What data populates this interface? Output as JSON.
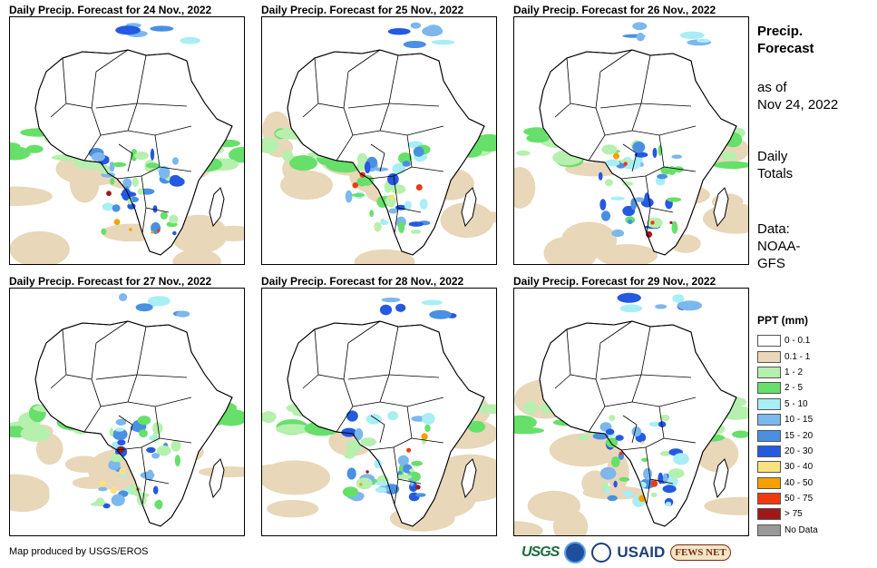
{
  "panels": [
    {
      "title": "Daily Precip. Forecast for 24 Nov., 2022"
    },
    {
      "title": "Daily Precip. Forecast for 25 Nov., 2022"
    },
    {
      "title": "Daily Precip. Forecast for 26 Nov., 2022"
    },
    {
      "title": "Daily Precip. Forecast for 27 Nov., 2022"
    },
    {
      "title": "Daily Precip. Forecast for 28 Nov., 2022"
    },
    {
      "title": "Daily Precip. Forecast for 29 Nov., 2022"
    }
  ],
  "sidebar": {
    "title_line1": "Precip.",
    "title_line2": "Forecast",
    "asof_line1": "as of",
    "asof_line2": "Nov 24, 2022",
    "totals_line1": "Daily",
    "totals_line2": "Totals",
    "data_line1": "Data:",
    "data_line2": "NOAA-",
    "data_line3": "GFS"
  },
  "legend": {
    "title": "PPT (mm)",
    "items": [
      {
        "label": "0 - 0.1",
        "color": "#ffffff"
      },
      {
        "label": "0.1 - 1",
        "color": "#e8d7b8"
      },
      {
        "label": "1 - 2",
        "color": "#b6f0ae"
      },
      {
        "label": "2 - 5",
        "color": "#66e06a"
      },
      {
        "label": "5 - 10",
        "color": "#a8eef5"
      },
      {
        "label": "10 - 15",
        "color": "#7cb7ee"
      },
      {
        "label": "15 - 20",
        "color": "#4a90e2"
      },
      {
        "label": "20 - 30",
        "color": "#2459e0"
      },
      {
        "label": "30 - 40",
        "color": "#fbe27e"
      },
      {
        "label": "40 - 50",
        "color": "#f5a000"
      },
      {
        "label": "50 - 75",
        "color": "#ef3a10"
      },
      {
        "label": "> 75",
        "color": "#a01818"
      },
      {
        "label": "No Data",
        "color": "#999999"
      }
    ]
  },
  "footer": {
    "credit": "Map produced by USGS/EROS"
  },
  "logos": {
    "usgs": "USGS",
    "usaid": "USAID",
    "fews": "FEWS NET"
  }
}
